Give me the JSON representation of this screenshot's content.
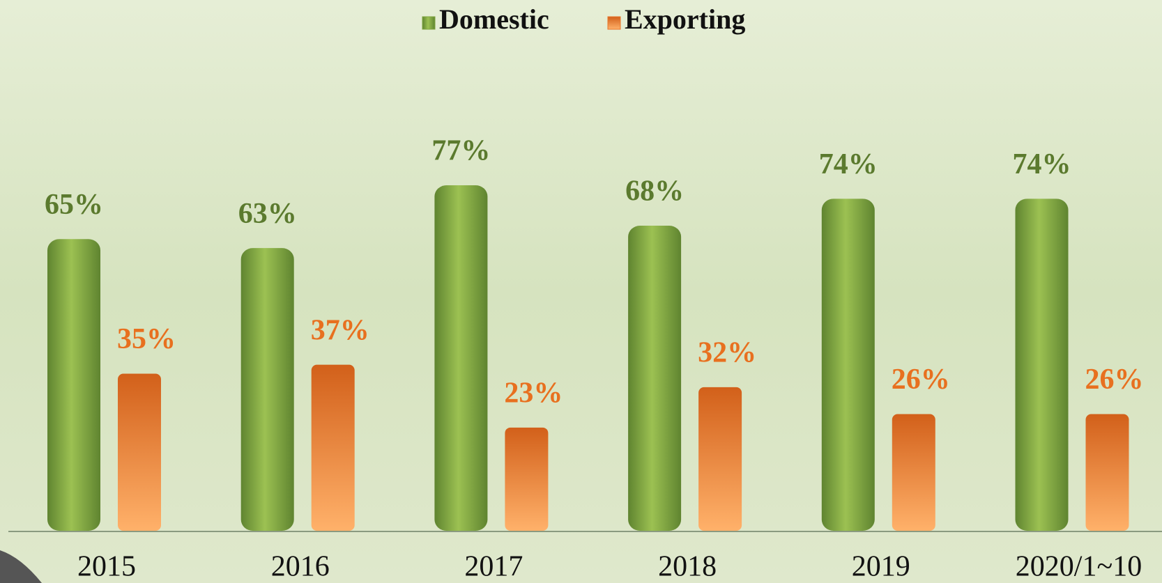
{
  "chart_data": {
    "type": "bar",
    "categories": [
      "2015",
      "2016",
      "2017",
      "2018",
      "2019",
      "2020/1~10"
    ],
    "series": [
      {
        "name": "Domestic",
        "color": "#7fa53f",
        "values": [
          65,
          63,
          77,
          68,
          74,
          74
        ],
        "value_labels": [
          "65%",
          "63%",
          "77%",
          "68%",
          "74%",
          "74%"
        ]
      },
      {
        "name": "Exporting",
        "color": "#e8752a",
        "values": [
          35,
          37,
          23,
          32,
          26,
          26
        ],
        "value_labels": [
          "35%",
          "37%",
          "23%",
          "32%",
          "26%",
          "26%"
        ]
      }
    ],
    "legend": "top"
  }
}
